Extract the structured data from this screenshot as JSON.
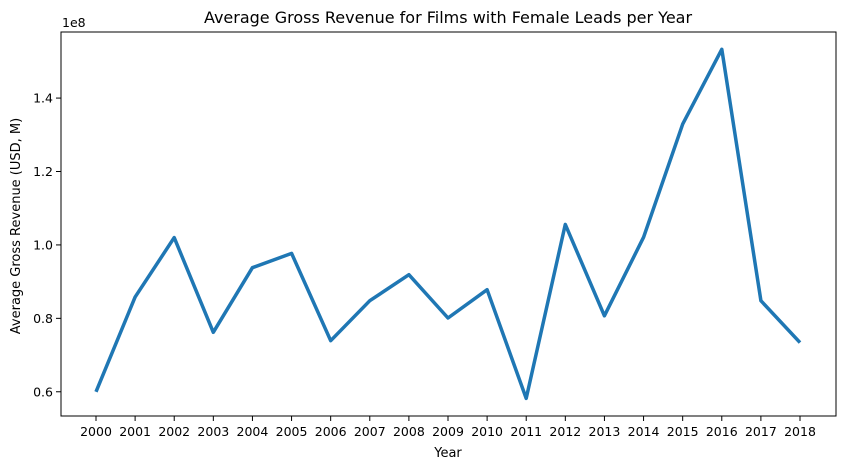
{
  "chart_data": {
    "type": "line",
    "title": "Average Gross Revenue for Films with Female Leads per Year",
    "xlabel": "Year",
    "ylabel": "Average Gross Revenue (USD, M)",
    "y_offset_label": "1e8",
    "x": [
      "2000",
      "2001",
      "2002",
      "2003",
      "2004",
      "2005",
      "2006",
      "2007",
      "2008",
      "2009",
      "2010",
      "2011",
      "2012",
      "2013",
      "2014",
      "2015",
      "2016",
      "2017",
      "2018"
    ],
    "series": [
      {
        "values": [
          60000000,
          85800000,
          102000000,
          76200000,
          93800000,
          97700000,
          73900000,
          84800000,
          91900000,
          80100000,
          87800000,
          58200000,
          105600000,
          80700000,
          102100000,
          132900000,
          153300000,
          84800000,
          73400000
        ],
        "color": "#1f77b4"
      }
    ],
    "ylim": [
      53400000,
      158000000
    ],
    "yticks": [
      {
        "value": 60000000,
        "label": "0.6"
      },
      {
        "value": 80000000,
        "label": "0.8"
      },
      {
        "value": 100000000,
        "label": "1.0"
      },
      {
        "value": 120000000,
        "label": "1.2"
      },
      {
        "value": 140000000,
        "label": "1.4"
      }
    ],
    "grid": false,
    "legend": "none"
  }
}
